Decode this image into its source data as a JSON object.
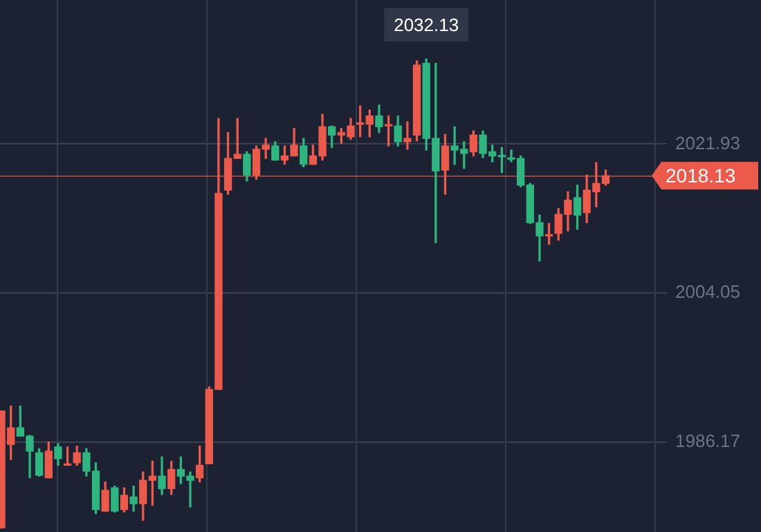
{
  "chart_data": {
    "type": "candlestick",
    "categories": [
      null,
      null,
      null,
      null,
      null,
      null,
      null,
      null,
      null,
      null,
      null,
      null,
      null,
      null,
      null,
      null,
      null,
      null,
      null,
      null,
      null,
      null,
      null,
      null,
      null,
      null,
      null,
      null,
      null,
      null,
      null,
      null,
      null,
      null,
      null,
      null,
      null,
      null,
      null,
      null,
      null,
      null,
      null,
      null,
      null,
      null,
      null,
      null,
      null,
      null,
      null,
      null,
      null,
      null,
      null,
      null,
      null,
      null,
      null,
      null,
      null,
      null,
      null,
      null,
      null
    ],
    "ohlc": [
      [
        1975.9,
        1989.9,
        1975.9,
        1989.9
      ],
      [
        1985.9,
        1990.5,
        1984.1,
        1987.9
      ],
      [
        1987.9,
        1990.5,
        1986.9,
        1986.9
      ],
      [
        1986.9,
        1987.0,
        1981.9,
        1985.1
      ],
      [
        1984.9,
        1985.4,
        1982.1,
        1982.2
      ],
      [
        1981.9,
        1986.2,
        1981.9,
        1985.1
      ],
      [
        1985.6,
        1986.0,
        1983.4,
        1984.2
      ],
      [
        1983.4,
        1985.6,
        1983.4,
        1983.4
      ],
      [
        1983.7,
        1985.7,
        1983.4,
        1984.9
      ],
      [
        1984.9,
        1985.4,
        1982.1,
        1982.7
      ],
      [
        1982.7,
        1983.7,
        1977.6,
        1978.1
      ],
      [
        1977.9,
        1981.4,
        1977.9,
        1980.4
      ],
      [
        1980.7,
        1980.9,
        1977.8,
        1977.9
      ],
      [
        1978.1,
        1980.7,
        1977.8,
        1979.8
      ],
      [
        1979.6,
        1980.9,
        1977.9,
        1978.8
      ],
      [
        1978.8,
        1982.6,
        1976.8,
        1981.6
      ],
      [
        1981.6,
        1983.9,
        1978.6,
        1982.1
      ],
      [
        1982.1,
        1984.4,
        1979.9,
        1980.6
      ],
      [
        1980.6,
        1983.9,
        1979.9,
        1982.9
      ],
      [
        1982.9,
        1984.4,
        1981.2,
        1982.1
      ],
      [
        1982.1,
        1982.6,
        1978.4,
        1981.6
      ],
      [
        1981.9,
        1985.7,
        1981.4,
        1983.4
      ],
      [
        1983.6,
        1992.8,
        1983.6,
        1992.5
      ],
      [
        1992.5,
        2025.0,
        1992.5,
        2016.0
      ],
      [
        2016.4,
        2023.3,
        2015.9,
        2020.2
      ],
      [
        2020.2,
        2025.0,
        2020.2,
        2020.7
      ],
      [
        2020.7,
        2021.0,
        2017.5,
        2018.2
      ],
      [
        2018.2,
        2021.7,
        2017.7,
        2021.3
      ],
      [
        2021.3,
        2022.6,
        2020.2,
        2021.8
      ],
      [
        2021.7,
        2022.2,
        2020.0,
        2020.0
      ],
      [
        2020.0,
        2021.7,
        2019.5,
        2020.5
      ],
      [
        2020.5,
        2023.8,
        2020.5,
        2021.8
      ],
      [
        2021.7,
        2022.6,
        2019.2,
        2019.5
      ],
      [
        2019.5,
        2021.8,
        2019.5,
        2020.5
      ],
      [
        2020.5,
        2025.5,
        2020.0,
        2024.0
      ],
      [
        2024.0,
        2024.1,
        2021.5,
        2023.0
      ],
      [
        2023.0,
        2023.8,
        2022.0,
        2023.3
      ],
      [
        2022.8,
        2025.0,
        2022.5,
        2024.1
      ],
      [
        2024.3,
        2026.5,
        2022.8,
        2024.3
      ],
      [
        2024.3,
        2026.0,
        2022.8,
        2025.3
      ],
      [
        2025.3,
        2026.6,
        2023.3,
        2024.0
      ],
      [
        2024.1,
        2025.3,
        2021.7,
        2024.1
      ],
      [
        2024.1,
        2025.3,
        2021.7,
        2022.2
      ],
      [
        2022.2,
        2024.6,
        2021.3,
        2022.6
      ],
      [
        2023.0,
        2031.9,
        2022.3,
        2031.4
      ],
      [
        2031.6,
        2032.13,
        2021.2,
        2022.6
      ],
      [
        2022.6,
        2031.6,
        2010.1,
        2018.7
      ],
      [
        2018.8,
        2023.1,
        2015.9,
        2021.7
      ],
      [
        2021.7,
        2024.0,
        2019.5,
        2021.2
      ],
      [
        2021.3,
        2022.2,
        2019.0,
        2020.8
      ],
      [
        2021.0,
        2023.5,
        2020.5,
        2023.0
      ],
      [
        2023.0,
        2023.5,
        2020.3,
        2020.8
      ],
      [
        2021.0,
        2021.8,
        2019.8,
        2020.5
      ],
      [
        2020.5,
        2021.5,
        2018.5,
        2020.4
      ],
      [
        2020.2,
        2021.2,
        2019.8,
        2020.1
      ],
      [
        2020.2,
        2020.5,
        2016.8,
        2017.0
      ],
      [
        2017.0,
        2017.2,
        2012.4,
        2012.5
      ],
      [
        2012.5,
        2013.4,
        2007.9,
        2010.9
      ],
      [
        2010.9,
        2012.4,
        2009.9,
        2010.9
      ],
      [
        2011.2,
        2014.2,
        2010.4,
        2013.5
      ],
      [
        2013.5,
        2016.2,
        2011.5,
        2015.2
      ],
      [
        2015.5,
        2017.0,
        2011.7,
        2013.4
      ],
      [
        2013.7,
        2018.2,
        2012.5,
        2016.4
      ],
      [
        2016.2,
        2019.7,
        2014.4,
        2017.2
      ],
      [
        2017.2,
        2018.8,
        2017.0,
        2018.13
      ]
    ],
    "colors": [
      "#ec5a4c",
      "#ec5a4c",
      "#2fb57f",
      "#2fb57f",
      "#2fb57f",
      "#ec5a4c",
      "#2fb57f",
      "#ec5a4c",
      "#ec5a4c",
      "#2fb57f",
      "#2fb57f",
      "#ec5a4c",
      "#2fb57f",
      "#ec5a4c",
      "#2fb57f",
      "#ec5a4c",
      "#ec5a4c",
      "#2fb57f",
      "#ec5a4c",
      "#2fb57f",
      "#2fb57f",
      "#ec5a4c",
      "#ec5a4c",
      "#ec5a4c",
      "#ec5a4c",
      "#ec5a4c",
      "#2fb57f",
      "#ec5a4c",
      "#ec5a4c",
      "#2fb57f",
      "#ec5a4c",
      "#ec5a4c",
      "#2fb57f",
      "#ec5a4c",
      "#ec5a4c",
      "#2fb57f",
      "#ec5a4c",
      "#ec5a4c",
      "#ec5a4c",
      "#ec5a4c",
      "#2fb57f",
      "#ec5a4c",
      "#2fb57f",
      "#ec5a4c",
      "#ec5a4c",
      "#2fb57f",
      "#2fb57f",
      "#ec5a4c",
      "#2fb57f",
      "#2fb57f",
      "#ec5a4c",
      "#2fb57f",
      "#2fb57f",
      "#2fb57f",
      "#2fb57f",
      "#2fb57f",
      "#2fb57f",
      "#2fb57f",
      "#ec5a4c",
      "#ec5a4c",
      "#ec5a4c",
      "#2fb57f",
      "#ec5a4c",
      "#ec5a4c",
      "#ec5a4c"
    ],
    "ylim": [
      1975.4,
      2039.2
    ],
    "yticks": [
      1986.17,
      2004.05,
      2021.93
    ],
    "grid": "y",
    "tick_labels": "y",
    "ref_lines": [
      {
        "axis": "y",
        "value": 2018.13,
        "label": "2018.13",
        "color": "#ec5a4c"
      }
    ],
    "annotations": [
      {
        "text": "2032.13",
        "y": 2032.13
      }
    ]
  }
}
